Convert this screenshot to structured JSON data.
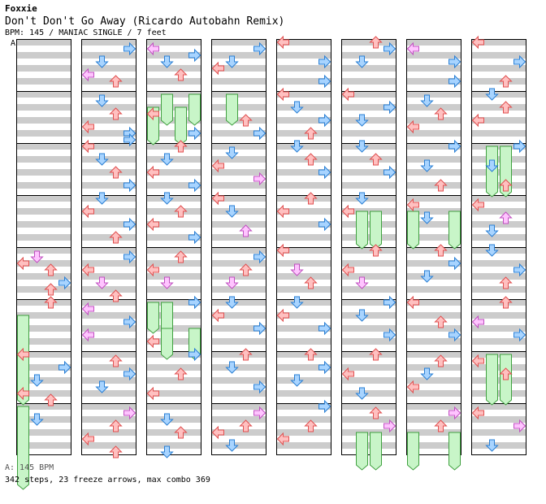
{
  "song": {
    "artist": "Foxxie",
    "title": "Don't Don't Go Away (Ricardo Autobahn Remix)",
    "meta": "BPM: 145 / MANIAC SINGLE / 7 feet"
  },
  "section_marker": "A",
  "footer": {
    "bpm_note": "A: 145 BPM",
    "stats": "342 steps, 23 freeze arrows, max combo 369"
  },
  "colors": {
    "left": "#ffc0c0",
    "left_stroke": "#e05050",
    "down": "#a8d4ff",
    "down_stroke": "#2a7fd4",
    "up": "#ffc0c0",
    "right": "#a8d4ff",
    "quarter_pink": "#ffc4ff",
    "freeze": "#c8f5c8",
    "freeze_stroke": "#40a040",
    "stripe": "#cccccc"
  },
  "arrow_types": [
    "left-arrow-icon",
    "down-arrow-icon",
    "up-arrow-icon",
    "right-arrow-icon"
  ],
  "chart": {
    "columns": 8,
    "measures_per_column": 8,
    "lanes": 4,
    "notes": [
      [
        [
          0,
          4,
          1,
          1
        ],
        [
          0,
          4,
          2,
          0
        ],
        [
          0,
          4,
          3,
          2
        ],
        [
          0,
          4,
          5,
          3
        ],
        [
          0,
          4,
          6,
          2
        ],
        [
          0,
          5,
          0,
          2
        ],
        [
          0,
          6,
          0,
          0
        ],
        [
          0,
          6,
          2,
          3
        ],
        [
          0,
          6,
          4,
          1
        ],
        [
          0,
          6,
          6,
          0
        ],
        [
          0,
          6,
          7,
          2
        ],
        [
          0,
          7,
          2,
          1
        ]
      ],
      [
        [
          1,
          0,
          1,
          3
        ],
        [
          1,
          0,
          3,
          1
        ],
        [
          1,
          0,
          5,
          0
        ],
        [
          1,
          0,
          6,
          2
        ],
        [
          1,
          1,
          1,
          1
        ],
        [
          1,
          1,
          3,
          2
        ],
        [
          1,
          1,
          5,
          0
        ],
        [
          1,
          1,
          6,
          3
        ],
        [
          1,
          1,
          7,
          3
        ],
        [
          1,
          2,
          0,
          0
        ],
        [
          1,
          2,
          2,
          1
        ],
        [
          1,
          2,
          4,
          2
        ],
        [
          1,
          2,
          6,
          3
        ],
        [
          1,
          3,
          0,
          1
        ],
        [
          1,
          3,
          2,
          0
        ],
        [
          1,
          3,
          4,
          3
        ],
        [
          1,
          3,
          6,
          2
        ],
        [
          1,
          4,
          1,
          3
        ],
        [
          1,
          4,
          3,
          0
        ],
        [
          1,
          4,
          5,
          1
        ],
        [
          1,
          4,
          7,
          2
        ],
        [
          1,
          5,
          1,
          0
        ],
        [
          1,
          5,
          3,
          3
        ],
        [
          1,
          5,
          5,
          0
        ],
        [
          1,
          6,
          1,
          2
        ],
        [
          1,
          6,
          3,
          3
        ],
        [
          1,
          6,
          5,
          1
        ],
        [
          1,
          7,
          1,
          3
        ],
        [
          1,
          7,
          3,
          2
        ],
        [
          1,
          7,
          5,
          0
        ],
        [
          1,
          7,
          7,
          2
        ]
      ],
      [
        [
          2,
          0,
          1,
          0
        ],
        [
          2,
          0,
          2,
          3
        ],
        [
          2,
          0,
          3,
          1
        ],
        [
          2,
          0,
          5,
          2
        ],
        [
          2,
          1,
          3,
          0
        ],
        [
          2,
          1,
          6,
          3
        ],
        [
          2,
          2,
          0,
          2
        ],
        [
          2,
          2,
          2,
          1
        ],
        [
          2,
          2,
          4,
          0
        ],
        [
          2,
          2,
          6,
          3
        ],
        [
          2,
          3,
          0,
          1
        ],
        [
          2,
          3,
          2,
          2
        ],
        [
          2,
          3,
          4,
          0
        ],
        [
          2,
          3,
          6,
          3
        ],
        [
          2,
          4,
          1,
          2
        ],
        [
          2,
          4,
          3,
          0
        ],
        [
          2,
          4,
          5,
          1
        ],
        [
          2,
          5,
          0,
          3
        ],
        [
          2,
          5,
          6,
          0
        ],
        [
          2,
          6,
          0,
          3
        ],
        [
          2,
          6,
          3,
          2
        ],
        [
          2,
          6,
          6,
          0
        ],
        [
          2,
          7,
          2,
          1
        ],
        [
          2,
          7,
          4,
          2
        ],
        [
          2,
          7,
          7,
          1
        ]
      ],
      [
        [
          3,
          0,
          1,
          3
        ],
        [
          3,
          0,
          3,
          1
        ],
        [
          3,
          0,
          4,
          0
        ],
        [
          3,
          1,
          4,
          2
        ],
        [
          3,
          1,
          6,
          3
        ],
        [
          3,
          2,
          1,
          1
        ],
        [
          3,
          2,
          3,
          0
        ],
        [
          3,
          2,
          5,
          3
        ],
        [
          3,
          3,
          0,
          0
        ],
        [
          3,
          3,
          2,
          1
        ],
        [
          3,
          3,
          5,
          2
        ],
        [
          3,
          4,
          1,
          3
        ],
        [
          3,
          4,
          3,
          2
        ],
        [
          3,
          4,
          5,
          1
        ],
        [
          3,
          5,
          0,
          1
        ],
        [
          3,
          5,
          2,
          0
        ],
        [
          3,
          5,
          4,
          3
        ],
        [
          3,
          6,
          0,
          2
        ],
        [
          3,
          6,
          2,
          1
        ],
        [
          3,
          6,
          5,
          3
        ],
        [
          3,
          7,
          1,
          3
        ],
        [
          3,
          7,
          3,
          2
        ],
        [
          3,
          7,
          4,
          0
        ],
        [
          3,
          7,
          6,
          1
        ]
      ],
      [
        [
          4,
          0,
          0,
          0
        ],
        [
          4,
          0,
          3,
          3
        ],
        [
          4,
          0,
          6,
          3
        ],
        [
          4,
          1,
          0,
          0
        ],
        [
          4,
          1,
          2,
          1
        ],
        [
          4,
          1,
          4,
          3
        ],
        [
          4,
          1,
          6,
          2
        ],
        [
          4,
          2,
          0,
          1
        ],
        [
          4,
          2,
          2,
          2
        ],
        [
          4,
          2,
          4,
          3
        ],
        [
          4,
          3,
          0,
          2
        ],
        [
          4,
          3,
          2,
          0
        ],
        [
          4,
          3,
          4,
          3
        ],
        [
          4,
          4,
          0,
          0
        ],
        [
          4,
          4,
          3,
          1
        ],
        [
          4,
          4,
          5,
          2
        ],
        [
          4,
          5,
          0,
          1
        ],
        [
          4,
          5,
          2,
          0
        ],
        [
          4,
          5,
          4,
          3
        ],
        [
          4,
          6,
          0,
          2
        ],
        [
          4,
          6,
          2,
          3
        ],
        [
          4,
          6,
          4,
          1
        ],
        [
          4,
          7,
          0,
          3
        ],
        [
          4,
          7,
          3,
          2
        ],
        [
          4,
          7,
          5,
          0
        ]
      ],
      [
        [
          5,
          0,
          0,
          2
        ],
        [
          5,
          0,
          1,
          3
        ],
        [
          5,
          0,
          3,
          1
        ],
        [
          5,
          1,
          0,
          0
        ],
        [
          5,
          1,
          2,
          3
        ],
        [
          5,
          1,
          4,
          1
        ],
        [
          5,
          2,
          0,
          1
        ],
        [
          5,
          2,
          2,
          2
        ],
        [
          5,
          2,
          4,
          3
        ],
        [
          5,
          3,
          0,
          1
        ],
        [
          5,
          3,
          2,
          0
        ],
        [
          5,
          4,
          0,
          2
        ],
        [
          5,
          4,
          3,
          0
        ],
        [
          5,
          4,
          5,
          1
        ],
        [
          5,
          5,
          0,
          3
        ],
        [
          5,
          5,
          2,
          1
        ],
        [
          5,
          5,
          5,
          3
        ],
        [
          5,
          6,
          0,
          2
        ],
        [
          5,
          6,
          3,
          0
        ],
        [
          5,
          6,
          6,
          1
        ],
        [
          5,
          7,
          1,
          2
        ],
        [
          5,
          7,
          3,
          3
        ]
      ],
      [
        [
          6,
          0,
          1,
          0
        ],
        [
          6,
          0,
          3,
          3
        ],
        [
          6,
          0,
          6,
          3
        ],
        [
          6,
          1,
          1,
          1
        ],
        [
          6,
          1,
          3,
          2
        ],
        [
          6,
          1,
          5,
          0
        ],
        [
          6,
          2,
          0,
          3
        ],
        [
          6,
          2,
          3,
          1
        ],
        [
          6,
          2,
          6,
          2
        ],
        [
          6,
          3,
          1,
          0
        ],
        [
          6,
          3,
          3,
          1
        ],
        [
          6,
          4,
          0,
          2
        ],
        [
          6,
          4,
          2,
          3
        ],
        [
          6,
          4,
          4,
          1
        ],
        [
          6,
          5,
          0,
          0
        ],
        [
          6,
          5,
          3,
          2
        ],
        [
          6,
          5,
          5,
          3
        ],
        [
          6,
          6,
          1,
          2
        ],
        [
          6,
          6,
          3,
          1
        ],
        [
          6,
          6,
          5,
          0
        ],
        [
          6,
          7,
          1,
          3
        ],
        [
          6,
          7,
          3,
          2
        ]
      ],
      [
        [
          7,
          0,
          0,
          0
        ],
        [
          7,
          0,
          3,
          3
        ],
        [
          7,
          0,
          6,
          2
        ],
        [
          7,
          1,
          0,
          1
        ],
        [
          7,
          1,
          2,
          2
        ],
        [
          7,
          1,
          4,
          0
        ],
        [
          7,
          2,
          0,
          3
        ],
        [
          7,
          2,
          3,
          1
        ],
        [
          7,
          2,
          6,
          2
        ],
        [
          7,
          3,
          1,
          0
        ],
        [
          7,
          3,
          3,
          2
        ],
        [
          7,
          3,
          5,
          1
        ],
        [
          7,
          4,
          0,
          1
        ],
        [
          7,
          4,
          3,
          3
        ],
        [
          7,
          4,
          5,
          2
        ],
        [
          7,
          5,
          0,
          2
        ],
        [
          7,
          5,
          3,
          0
        ],
        [
          7,
          5,
          5,
          3
        ],
        [
          7,
          6,
          1,
          0
        ],
        [
          7,
          6,
          3,
          2
        ],
        [
          7,
          7,
          1,
          0
        ],
        [
          7,
          7,
          3,
          3
        ],
        [
          7,
          7,
          6,
          1
        ]
      ]
    ],
    "freezes": [
      [
        0,
        5,
        2,
        0,
        13
      ],
      [
        0,
        7,
        0,
        0,
        12
      ],
      [
        2,
        1,
        0,
        1,
        4
      ],
      [
        2,
        1,
        0,
        3,
        4
      ],
      [
        2,
        1,
        2,
        0,
        5
      ],
      [
        2,
        1,
        2,
        2,
        5
      ],
      [
        2,
        5,
        0,
        0,
        4
      ],
      [
        2,
        5,
        0,
        1,
        4
      ],
      [
        2,
        5,
        4,
        1,
        4
      ],
      [
        2,
        5,
        4,
        3,
        4
      ],
      [
        3,
        1,
        0,
        1,
        4
      ],
      [
        5,
        3,
        2,
        1,
        5
      ],
      [
        5,
        3,
        2,
        2,
        5
      ],
      [
        5,
        7,
        4,
        1,
        5
      ],
      [
        5,
        7,
        4,
        2,
        5
      ],
      [
        6,
        3,
        2,
        0,
        5
      ],
      [
        6,
        3,
        2,
        3,
        5
      ],
      [
        6,
        7,
        4,
        0,
        5
      ],
      [
        6,
        7,
        4,
        3,
        5
      ],
      [
        7,
        2,
        0,
        1,
        7
      ],
      [
        7,
        2,
        0,
        2,
        7
      ],
      [
        7,
        6,
        0,
        1,
        7
      ],
      [
        7,
        6,
        0,
        2,
        7
      ]
    ]
  }
}
